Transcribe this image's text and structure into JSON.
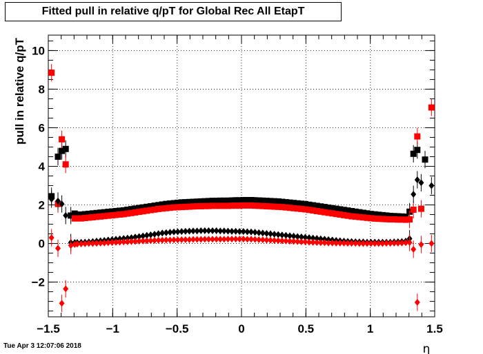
{
  "chart_data": {
    "type": "scatter",
    "title": "Fitted pull in relative q/pT for Global Rec All EtapT",
    "xlabel": "η",
    "ylabel": "pull in relative q/pT",
    "xlim": [
      -1.5,
      1.5
    ],
    "ylim": [
      -3.8,
      10.8
    ],
    "xticks": [
      "−1.5",
      "−1",
      "−0.5",
      "0",
      "0.5",
      "1",
      "1.5"
    ],
    "yticks": [
      "−2",
      "0",
      "2",
      "4",
      "6",
      "8",
      "10"
    ],
    "grid": true,
    "series": [
      {
        "marker": "square",
        "color": "#000000",
        "x": [
          -1.475,
          -1.425,
          -1.395,
          -1.365,
          -1.325,
          -1.295,
          -1.275,
          -1.245,
          -1.215,
          -1.185,
          -1.155,
          -1.125,
          -1.095,
          -1.065,
          -1.035,
          -1.005,
          -0.975,
          -0.945,
          -0.915,
          -0.885,
          -0.855,
          -0.825,
          -0.795,
          -0.765,
          -0.735,
          -0.705,
          -0.675,
          -0.645,
          -0.615,
          -0.585,
          -0.555,
          -0.525,
          -0.495,
          -0.465,
          -0.435,
          -0.405,
          -0.375,
          -0.345,
          -0.315,
          -0.285,
          -0.255,
          -0.225,
          -0.195,
          -0.165,
          -0.135,
          -0.105,
          -0.075,
          -0.045,
          -0.015,
          0.015,
          0.045,
          0.075,
          0.105,
          0.135,
          0.165,
          0.195,
          0.225,
          0.255,
          0.285,
          0.315,
          0.345,
          0.375,
          0.405,
          0.435,
          0.465,
          0.495,
          0.525,
          0.555,
          0.585,
          0.615,
          0.645,
          0.675,
          0.705,
          0.735,
          0.765,
          0.795,
          0.825,
          0.855,
          0.885,
          0.915,
          0.945,
          0.975,
          1.005,
          1.035,
          1.065,
          1.095,
          1.125,
          1.155,
          1.185,
          1.215,
          1.245,
          1.275,
          1.305,
          1.335,
          1.365,
          1.395,
          1.425,
          1.475
        ],
        "y": [
          2.45,
          4.5,
          4.8,
          4.9,
          1.45,
          1.55,
          1.5,
          1.5,
          1.52,
          1.54,
          1.56,
          1.58,
          1.6,
          1.62,
          1.64,
          1.66,
          1.68,
          1.7,
          1.72,
          1.75,
          1.78,
          1.81,
          1.84,
          1.87,
          1.9,
          1.93,
          1.96,
          1.99,
          2.02,
          2.05,
          2.07,
          2.09,
          2.11,
          2.13,
          2.14,
          2.15,
          2.16,
          2.17,
          2.18,
          2.19,
          2.2,
          2.21,
          2.21,
          2.22,
          2.22,
          2.22,
          2.23,
          2.24,
          2.24,
          2.25,
          2.25,
          2.25,
          2.24,
          2.23,
          2.22,
          2.21,
          2.2,
          2.19,
          2.18,
          2.16,
          2.14,
          2.12,
          2.1,
          2.08,
          2.06,
          2.04,
          2.01,
          1.98,
          1.95,
          1.92,
          1.89,
          1.86,
          1.83,
          1.8,
          1.77,
          1.74,
          1.71,
          1.68,
          1.65,
          1.62,
          1.59,
          1.56,
          1.53,
          1.51,
          1.49,
          1.47,
          1.45,
          1.43,
          1.42,
          1.41,
          1.4,
          1.39,
          1.65,
          4.65,
          4.85,
          null,
          4.35,
          null
        ]
      },
      {
        "marker": "square",
        "color": "#ff0000",
        "x": [
          -1.475,
          -1.425,
          -1.395,
          -1.365,
          -1.325,
          -1.295,
          -1.275,
          -1.245,
          -1.215,
          -1.185,
          -1.155,
          -1.125,
          -1.095,
          -1.065,
          -1.035,
          -1.005,
          -0.975,
          -0.945,
          -0.915,
          -0.885,
          -0.855,
          -0.825,
          -0.795,
          -0.765,
          -0.735,
          -0.705,
          -0.675,
          -0.645,
          -0.615,
          -0.585,
          -0.555,
          -0.525,
          -0.495,
          -0.465,
          -0.435,
          -0.405,
          -0.375,
          -0.345,
          -0.315,
          -0.285,
          -0.255,
          -0.225,
          -0.195,
          -0.165,
          -0.135,
          -0.105,
          -0.075,
          -0.045,
          -0.015,
          0.015,
          0.045,
          0.075,
          0.105,
          0.135,
          0.165,
          0.195,
          0.225,
          0.255,
          0.285,
          0.315,
          0.345,
          0.375,
          0.405,
          0.435,
          0.465,
          0.495,
          0.525,
          0.555,
          0.585,
          0.615,
          0.645,
          0.675,
          0.705,
          0.735,
          0.765,
          0.795,
          0.825,
          0.855,
          0.885,
          0.915,
          0.945,
          0.975,
          1.005,
          1.035,
          1.065,
          1.095,
          1.125,
          1.155,
          1.185,
          1.215,
          1.245,
          1.275,
          1.305,
          1.335,
          1.365,
          1.395,
          1.425,
          1.475
        ],
        "y": [
          8.85,
          2.05,
          5.4,
          4.1,
          null,
          1.3,
          1.3,
          1.3,
          1.32,
          1.34,
          1.36,
          1.38,
          1.4,
          1.42,
          1.44,
          1.46,
          1.48,
          1.5,
          1.52,
          1.55,
          1.58,
          1.61,
          1.64,
          1.67,
          1.7,
          1.73,
          1.76,
          1.79,
          1.81,
          1.83,
          1.85,
          1.87,
          1.88,
          1.89,
          1.9,
          1.91,
          1.92,
          1.93,
          1.93,
          1.94,
          1.94,
          1.95,
          1.95,
          1.95,
          1.95,
          1.95,
          1.96,
          1.96,
          1.96,
          1.97,
          1.97,
          1.97,
          1.96,
          1.95,
          1.94,
          1.93,
          1.92,
          1.91,
          1.9,
          1.89,
          1.87,
          1.85,
          1.83,
          1.81,
          1.79,
          1.77,
          1.74,
          1.71,
          1.68,
          1.65,
          1.62,
          1.59,
          1.56,
          1.53,
          1.5,
          1.47,
          1.44,
          1.41,
          1.39,
          1.37,
          1.35,
          1.33,
          1.31,
          1.29,
          1.28,
          1.27,
          1.26,
          1.25,
          1.25,
          1.24,
          1.24,
          1.23,
          1.25,
          1.75,
          5.55,
          1.8,
          null,
          7.05
        ]
      },
      {
        "marker": "diamond",
        "color": "#000000",
        "x": [
          -1.475,
          -1.425,
          -1.395,
          -1.365,
          -1.325,
          -1.295,
          -1.275,
          -1.245,
          -1.215,
          -1.185,
          -1.155,
          -1.125,
          -1.095,
          -1.065,
          -1.035,
          -1.005,
          -0.975,
          -0.945,
          -0.915,
          -0.885,
          -0.855,
          -0.825,
          -0.795,
          -0.765,
          -0.735,
          -0.705,
          -0.675,
          -0.645,
          -0.615,
          -0.585,
          -0.555,
          -0.525,
          -0.495,
          -0.465,
          -0.435,
          -0.405,
          -0.375,
          -0.345,
          -0.315,
          -0.285,
          -0.255,
          -0.225,
          -0.195,
          -0.165,
          -0.135,
          -0.105,
          -0.075,
          -0.045,
          -0.015,
          0.015,
          0.045,
          0.075,
          0.105,
          0.135,
          0.165,
          0.195,
          0.225,
          0.255,
          0.285,
          0.315,
          0.345,
          0.375,
          0.405,
          0.435,
          0.465,
          0.495,
          0.525,
          0.555,
          0.585,
          0.615,
          0.645,
          0.675,
          0.705,
          0.735,
          0.765,
          0.795,
          0.825,
          0.855,
          0.885,
          0.915,
          0.945,
          0.975,
          1.005,
          1.035,
          1.065,
          1.095,
          1.125,
          1.155,
          1.185,
          1.215,
          1.245,
          1.275,
          1.305,
          1.335,
          1.365,
          1.395,
          1.425,
          1.475
        ],
        "y": [
          2.3,
          2.2,
          2.05,
          1.45,
          0.05,
          0.05,
          0.05,
          0.06,
          0.07,
          0.08,
          0.1,
          0.12,
          0.14,
          0.16,
          0.18,
          0.2,
          0.22,
          0.24,
          0.26,
          0.28,
          0.3,
          0.33,
          0.36,
          0.39,
          0.42,
          0.45,
          0.48,
          0.51,
          0.54,
          0.56,
          0.58,
          0.6,
          0.61,
          0.62,
          0.63,
          0.64,
          0.65,
          0.65,
          0.66,
          0.66,
          0.66,
          0.66,
          0.66,
          0.65,
          0.65,
          0.64,
          0.63,
          0.63,
          0.62,
          0.62,
          0.61,
          0.6,
          0.58,
          0.56,
          0.54,
          0.52,
          0.5,
          0.48,
          0.46,
          0.44,
          0.42,
          0.4,
          0.38,
          0.36,
          0.34,
          0.32,
          0.3,
          0.28,
          0.26,
          0.24,
          0.22,
          0.2,
          0.18,
          0.16,
          0.14,
          0.12,
          0.11,
          0.1,
          0.09,
          0.08,
          0.08,
          0.07,
          0.07,
          0.07,
          0.07,
          0.07,
          0.07,
          0.07,
          0.08,
          0.09,
          0.1,
          0.12,
          0.25,
          2.55,
          3.3,
          3.15,
          null,
          3.0
        ]
      },
      {
        "marker": "diamond",
        "color": "#ff0000",
        "x": [
          -1.475,
          -1.425,
          -1.395,
          -1.365,
          -1.325,
          -1.295,
          -1.275,
          -1.245,
          -1.215,
          -1.185,
          -1.155,
          -1.125,
          -1.095,
          -1.065,
          -1.035,
          -1.005,
          -0.975,
          -0.945,
          -0.915,
          -0.885,
          -0.855,
          -0.825,
          -0.795,
          -0.765,
          -0.735,
          -0.705,
          -0.675,
          -0.645,
          -0.615,
          -0.585,
          -0.555,
          -0.525,
          -0.495,
          -0.465,
          -0.435,
          -0.405,
          -0.375,
          -0.345,
          -0.315,
          -0.285,
          -0.255,
          -0.225,
          -0.195,
          -0.165,
          -0.135,
          -0.105,
          -0.075,
          -0.045,
          -0.015,
          0.015,
          0.045,
          0.075,
          0.105,
          0.135,
          0.165,
          0.195,
          0.225,
          0.255,
          0.285,
          0.315,
          0.345,
          0.375,
          0.405,
          0.435,
          0.465,
          0.495,
          0.525,
          0.555,
          0.585,
          0.615,
          0.645,
          0.675,
          0.705,
          0.735,
          0.765,
          0.795,
          0.825,
          0.855,
          0.885,
          0.915,
          0.945,
          0.975,
          1.005,
          1.035,
          1.065,
          1.095,
          1.125,
          1.155,
          1.185,
          1.215,
          1.245,
          1.275,
          1.305,
          1.335,
          1.365,
          1.395,
          1.425,
          1.475
        ],
        "y": [
          0.3,
          -0.25,
          -3.1,
          -2.35,
          -0.1,
          -0.05,
          -0.03,
          -0.02,
          -0.01,
          0.0,
          0.0,
          0.01,
          0.02,
          0.03,
          0.04,
          0.05,
          0.06,
          0.07,
          0.08,
          0.09,
          0.1,
          0.11,
          0.12,
          0.13,
          0.14,
          0.15,
          0.16,
          0.17,
          0.17,
          0.18,
          0.18,
          0.19,
          0.19,
          0.2,
          0.2,
          0.2,
          0.21,
          0.21,
          0.21,
          0.22,
          0.22,
          0.22,
          0.22,
          0.22,
          0.22,
          0.23,
          0.23,
          0.23,
          0.23,
          0.23,
          0.22,
          0.22,
          0.21,
          0.2,
          0.19,
          0.18,
          0.17,
          0.16,
          0.15,
          0.14,
          0.13,
          0.12,
          0.11,
          0.1,
          0.09,
          0.08,
          0.07,
          0.06,
          0.05,
          0.04,
          0.04,
          0.03,
          0.03,
          0.02,
          0.02,
          0.02,
          0.01,
          0.01,
          0.01,
          0.0,
          0.0,
          0.0,
          0.0,
          0.0,
          0.0,
          0.0,
          0.01,
          0.01,
          0.02,
          0.02,
          0.03,
          0.04,
          0.05,
          -0.3,
          -3.05,
          -0.05,
          null,
          0.0
        ]
      }
    ]
  },
  "footer": {
    "timestamp": "Tue Apr  3 12:07:06 2018"
  }
}
